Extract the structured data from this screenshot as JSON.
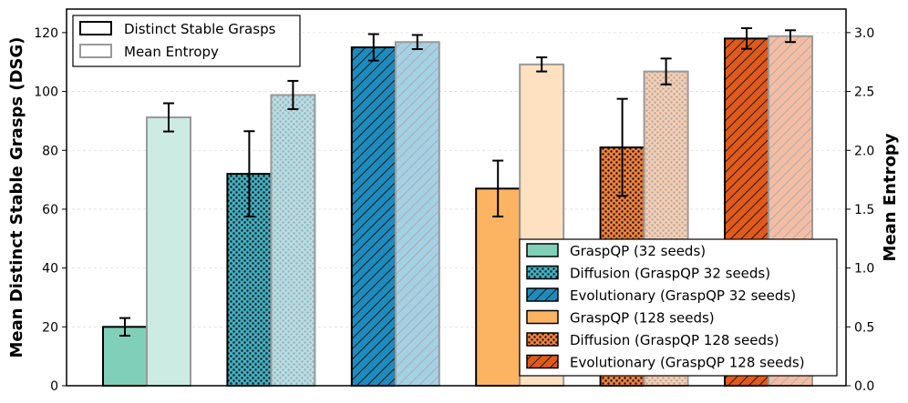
{
  "chart_data": {
    "type": "bar",
    "title": "",
    "xlabel": "",
    "ylabel": "Mean Distinct Stable Grasps (DSG)",
    "ylabel_right": "Mean Entropy",
    "ylim": [
      0,
      128
    ],
    "ylim_right": [
      0,
      3.2
    ],
    "yticks": [
      0,
      20,
      40,
      60,
      80,
      100,
      120
    ],
    "yticks_right": [
      0.0,
      0.5,
      1.0,
      1.5,
      2.0,
      2.5,
      3.0
    ],
    "grid": true,
    "series": [
      {
        "name": "GraspQP (32 seeds)",
        "color": "#80cfb8",
        "pattern": "solid",
        "dsg": 20,
        "dsg_err": 3,
        "entropy": 2.28,
        "entropy_err": 0.12
      },
      {
        "name": "Diffusion (GraspQP 32 seeds)",
        "color": "#3fb0c2",
        "pattern": "dots",
        "dsg": 72,
        "dsg_err": 14.5,
        "entropy": 2.47,
        "entropy_err": 0.12
      },
      {
        "name": "Evolutionary (GraspQP 32 seeds)",
        "color": "#1f8bbd",
        "pattern": "hatch",
        "dsg": 115,
        "dsg_err": 4.5,
        "entropy": 2.92,
        "entropy_err": 0.06
      },
      {
        "name": "GraspQP (128 seeds)",
        "color": "#fdb462",
        "pattern": "solid",
        "dsg": 67,
        "dsg_err": 9.5,
        "entropy": 2.73,
        "entropy_err": 0.06
      },
      {
        "name": "Diffusion (GraspQP 128 seeds)",
        "color": "#f0813a",
        "pattern": "dots",
        "dsg": 81,
        "dsg_err": 16.5,
        "entropy": 2.67,
        "entropy_err": 0.11
      },
      {
        "name": "Evolutionary (GraspQP 128 seeds)",
        "color": "#e05a1b",
        "pattern": "hatch",
        "dsg": 118,
        "dsg_err": 3.5,
        "entropy": 2.97,
        "entropy_err": 0.05
      }
    ],
    "legend_top": {
      "position": "top-left",
      "entries": [
        "Distinct Stable Grasps",
        "Mean Entropy"
      ]
    },
    "legend_bottom": {
      "position": "bottom-right"
    }
  }
}
